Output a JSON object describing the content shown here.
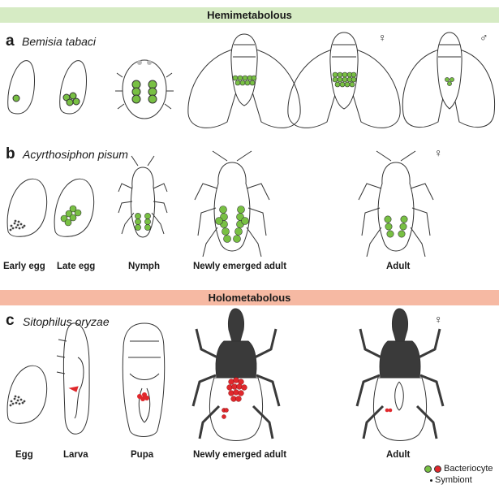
{
  "sections": {
    "hemimetabolous": "Hemimetabolous",
    "holometabolous": "Holometabolous"
  },
  "rows": [
    {
      "letter": "a",
      "species": "Bemisia tabaci"
    },
    {
      "letter": "b",
      "species": "Acyrthosiphon pisum"
    },
    {
      "letter": "c",
      "species": "Sitophilus oryzae"
    }
  ],
  "stage_labels": {
    "b": [
      "Early egg",
      "Late egg",
      "Nymph",
      "Newly emerged adult",
      "Adult"
    ],
    "c": [
      "Egg",
      "Larva",
      "Pupa",
      "Newly emerged adult",
      "Adult"
    ]
  },
  "sex_symbols": {
    "a_female": "♀",
    "a_male": "♂",
    "b_female": "♀",
    "c_female": "♀"
  },
  "legend": {
    "bacteriocyte": "Bacteriocyte",
    "symbiont": "Symbiont"
  },
  "colors": {
    "hemi_band": "#d6ebc4",
    "holo_band": "#f6b9a3",
    "bacteriocyte_green": "#78c043",
    "bacteriocyte_red": "#e0282c",
    "weevil_dark": "#3a3a3a"
  }
}
